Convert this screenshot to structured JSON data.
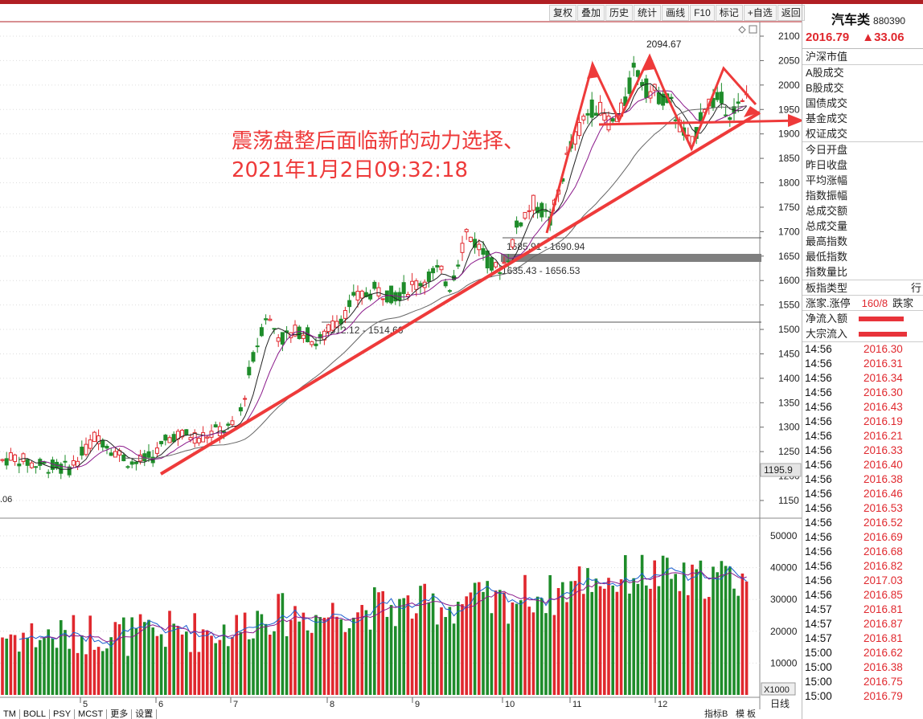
{
  "toolbar": {
    "buttons": [
      "复权",
      "叠加",
      "历史",
      "统计",
      "画线",
      "F10",
      "标记",
      "+自选",
      "返回"
    ]
  },
  "annotation": {
    "line1": "震荡盘整后面临新的动力选择、",
    "line2": "2021年1月2日09:32:18"
  },
  "price_axis": {
    "ticks": [
      "2100",
      "2050",
      "2000",
      "1950",
      "1900",
      "1850",
      "1800",
      "1750",
      "1700",
      "1650",
      "1600",
      "1550",
      "1500",
      "1450",
      "1400",
      "1350",
      "1300",
      "1250",
      "1200",
      "1150"
    ],
    "current_tag": "1195.9"
  },
  "volume_axis": {
    "ticks": [
      "50000",
      "40000",
      "30000",
      "20000",
      "10000"
    ],
    "unit": "X1000"
  },
  "months": [
    "5",
    "6",
    "7",
    "8",
    "9",
    "10",
    "11",
    "12"
  ],
  "chart_labels": {
    "high": "2094.67",
    "low_partial": ".06",
    "band1": "1685.91 - 1690.94",
    "band2": "1635.43 - 1656.53",
    "band3": "1512.12 - 1514.66"
  },
  "chart_data": {
    "type": "candlestick",
    "ylim": [
      1130,
      2120
    ],
    "volume_ylim": [
      0,
      55000
    ],
    "high_label": 2094.67,
    "support_bands": [
      [
        1685.91,
        1690.94
      ],
      [
        1635.43,
        1656.53
      ],
      [
        1512.12,
        1514.66
      ]
    ]
  },
  "sidebar": {
    "name": "汽车类",
    "code": "880390",
    "price": "2016.79",
    "change": "▲33.06",
    "labels1": [
      "沪深市值"
    ],
    "labels2": [
      "A股成交",
      "B股成交",
      "国债成交",
      "基金成交",
      "权证成交"
    ],
    "labels3": [
      "今日开盘",
      "昨日收盘",
      "平均涨幅",
      "指数振幅",
      "总成交额",
      "总成交量",
      "最高指数",
      "最低指数",
      "指数量比"
    ],
    "type_label": "板指类型",
    "type_val": "行",
    "updown_label": "涨家.涨停",
    "updown_val": "160/8",
    "updown_extra": "跌家",
    "flows": [
      {
        "label": "净流入额",
        "fill": 0.8
      },
      {
        "label": "大宗流入",
        "fill": 0.85
      }
    ],
    "ticks": [
      {
        "t": "14:56",
        "p": "2016.30"
      },
      {
        "t": "14:56",
        "p": "2016.31"
      },
      {
        "t": "14:56",
        "p": "2016.34"
      },
      {
        "t": "14:56",
        "p": "2016.30"
      },
      {
        "t": "14:56",
        "p": "2016.43"
      },
      {
        "t": "14:56",
        "p": "2016.19"
      },
      {
        "t": "14:56",
        "p": "2016.21"
      },
      {
        "t": "14:56",
        "p": "2016.33"
      },
      {
        "t": "14:56",
        "p": "2016.40"
      },
      {
        "t": "14:56",
        "p": "2016.38"
      },
      {
        "t": "14:56",
        "p": "2016.46"
      },
      {
        "t": "14:56",
        "p": "2016.53"
      },
      {
        "t": "14:56",
        "p": "2016.52"
      },
      {
        "t": "14:56",
        "p": "2016.69"
      },
      {
        "t": "14:56",
        "p": "2016.68"
      },
      {
        "t": "14:56",
        "p": "2016.82"
      },
      {
        "t": "14:56",
        "p": "2017.03"
      },
      {
        "t": "14:56",
        "p": "2016.85"
      },
      {
        "t": "14:57",
        "p": "2016.81"
      },
      {
        "t": "14:57",
        "p": "2016.87"
      },
      {
        "t": "14:57",
        "p": "2016.81"
      },
      {
        "t": "15:00",
        "p": "2016.62"
      },
      {
        "t": "15:00",
        "p": "2016.38"
      },
      {
        "t": "15:00",
        "p": "2016.75"
      },
      {
        "t": "15:00",
        "p": "2016.79"
      }
    ]
  },
  "bottom_tabs": [
    "TM",
    "BOLL",
    "PSY",
    "MCST",
    "更多",
    "设置"
  ],
  "bottom_right": {
    "label": "指标B",
    "mode": "模 板",
    "period": "日线"
  },
  "colors": {
    "up": "#e0282e",
    "down": "#1e8c2a",
    "arrow": "#ee3a3a"
  }
}
